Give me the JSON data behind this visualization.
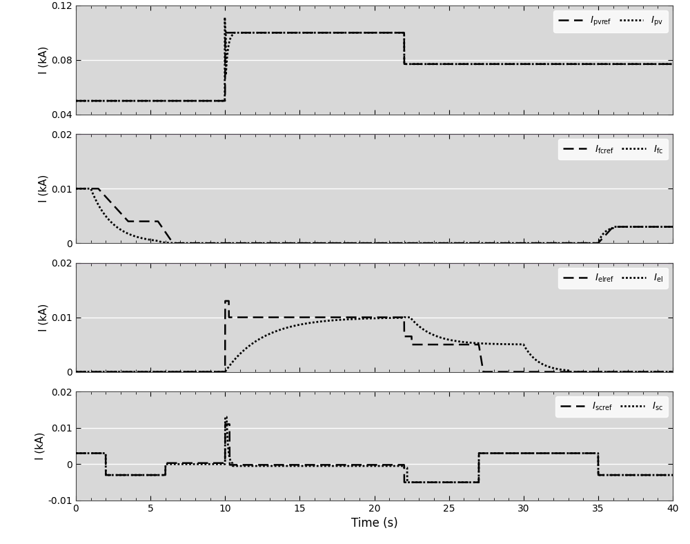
{
  "xlim": [
    0,
    40
  ],
  "subplot1": {
    "ylim": [
      0.04,
      0.12
    ],
    "yticks": [
      0.04,
      0.08,
      0.12
    ],
    "ylabel": "I (kA)"
  },
  "subplot2": {
    "ylim": [
      0,
      0.02
    ],
    "yticks": [
      0,
      0.01,
      0.02
    ],
    "ylabel": "I (kA)"
  },
  "subplot3": {
    "ylim": [
      0,
      0.02
    ],
    "yticks": [
      0,
      0.01,
      0.02
    ],
    "ylabel": "I (kA)"
  },
  "subplot4": {
    "ylim": [
      -0.01,
      0.02
    ],
    "yticks": [
      -0.01,
      0,
      0.01,
      0.02
    ],
    "ylabel": "I (kA)",
    "xlabel": "Time (s)"
  },
  "line_color": "#000000",
  "background_inner": "#d8d8d8",
  "grid_color": "#ffffff",
  "purple_line_color": "#9933bb"
}
